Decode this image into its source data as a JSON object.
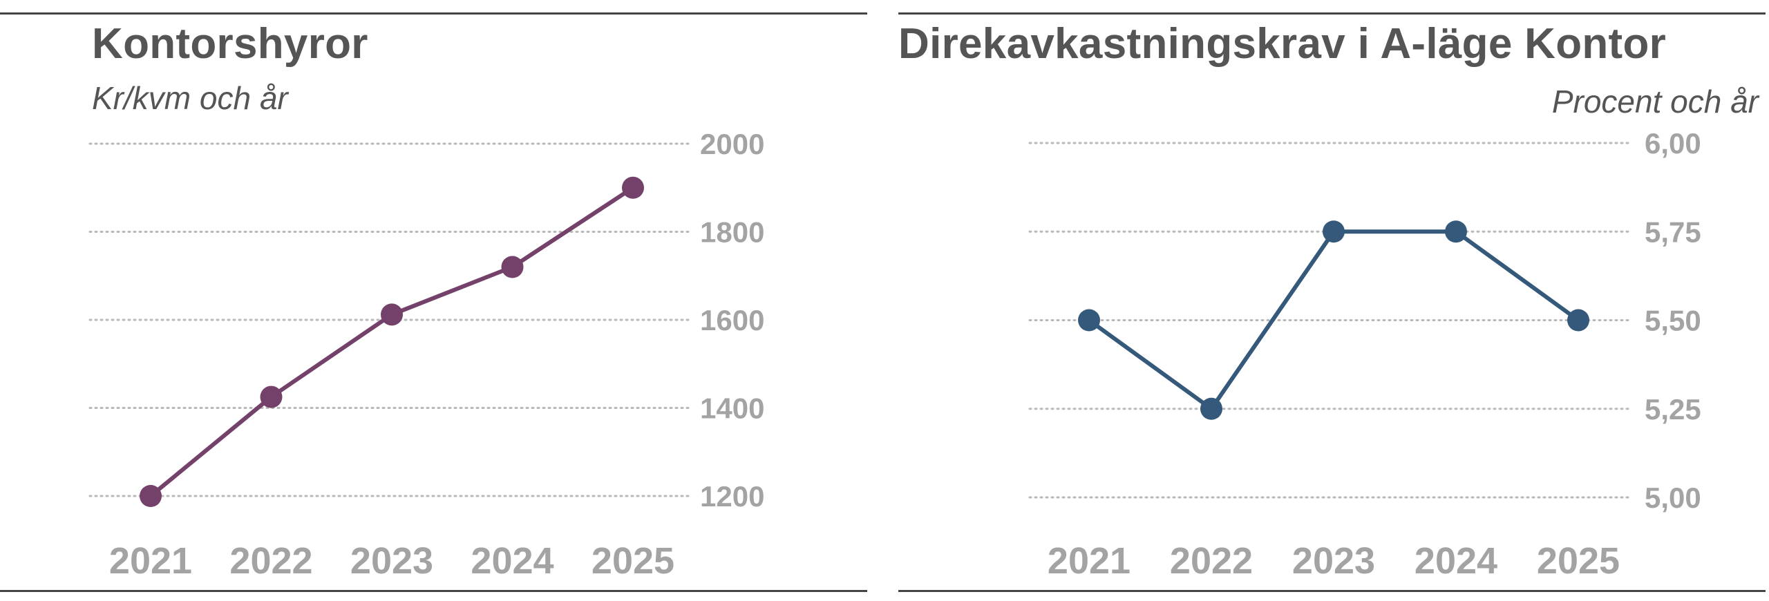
{
  "chart_data": [
    {
      "type": "line",
      "title": "Kontorshyror",
      "subtitle": "Kr/kvm och år",
      "categories": [
        "2021",
        "2022",
        "2023",
        "2024",
        "2025"
      ],
      "series": [
        {
          "values": [
            1200,
            1425,
            1612,
            1720,
            1900
          ]
        }
      ],
      "yticks": [
        "1200",
        "1400",
        "1600",
        "1800",
        "2000"
      ],
      "ylim": [
        1200,
        2000
      ],
      "y_axis_side": "right",
      "grid": true,
      "color": "#74416a"
    },
    {
      "type": "line",
      "title": "Direkavkastningskrav i A-läge Kontor",
      "subtitle": "Procent och år",
      "categories": [
        "2021",
        "2022",
        "2023",
        "2024",
        "2025"
      ],
      "series": [
        {
          "values": [
            5.5,
            5.25,
            5.75,
            5.75,
            5.5
          ]
        }
      ],
      "yticks": [
        "5,00",
        "5,25",
        "5,50",
        "5,75",
        "6,00"
      ],
      "ylim": [
        5.0,
        6.0
      ],
      "y_axis_side": "right",
      "grid": true,
      "color": "#34597a"
    }
  ]
}
